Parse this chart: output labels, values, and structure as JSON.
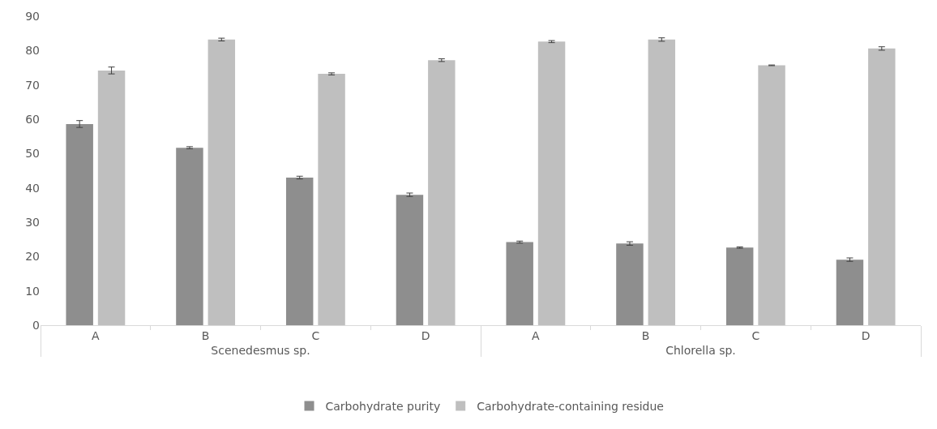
{
  "chart_data": {
    "type": "bar",
    "categories": [
      "A",
      "B",
      "C",
      "D",
      "A",
      "B",
      "C",
      "D"
    ],
    "annotations": [
      "Scenedesmus sp.",
      "Chlorella sp."
    ],
    "series": [
      {
        "name": "Carbohydrate purity",
        "color": "#8e8e8e",
        "values": [
          58.6,
          51.7,
          43.0,
          38.0,
          24.2,
          23.8,
          22.6,
          19.1
        ],
        "errors": [
          1.0,
          0.3,
          0.4,
          0.5,
          0.3,
          0.5,
          0.2,
          0.5
        ]
      },
      {
        "name": "Carbohydrate-containing residue",
        "color": "#bfbfbf",
        "values": [
          74.2,
          83.2,
          73.2,
          77.2,
          82.6,
          83.2,
          75.7,
          80.6
        ],
        "errors": [
          1.0,
          0.4,
          0.3,
          0.4,
          0.3,
          0.5,
          0.1,
          0.5
        ]
      }
    ],
    "ylim": [
      0,
      90
    ],
    "yticks": [
      0,
      10,
      20,
      30,
      40,
      50,
      60,
      70,
      80,
      90
    ],
    "grid": false,
    "legend": "bottom"
  }
}
